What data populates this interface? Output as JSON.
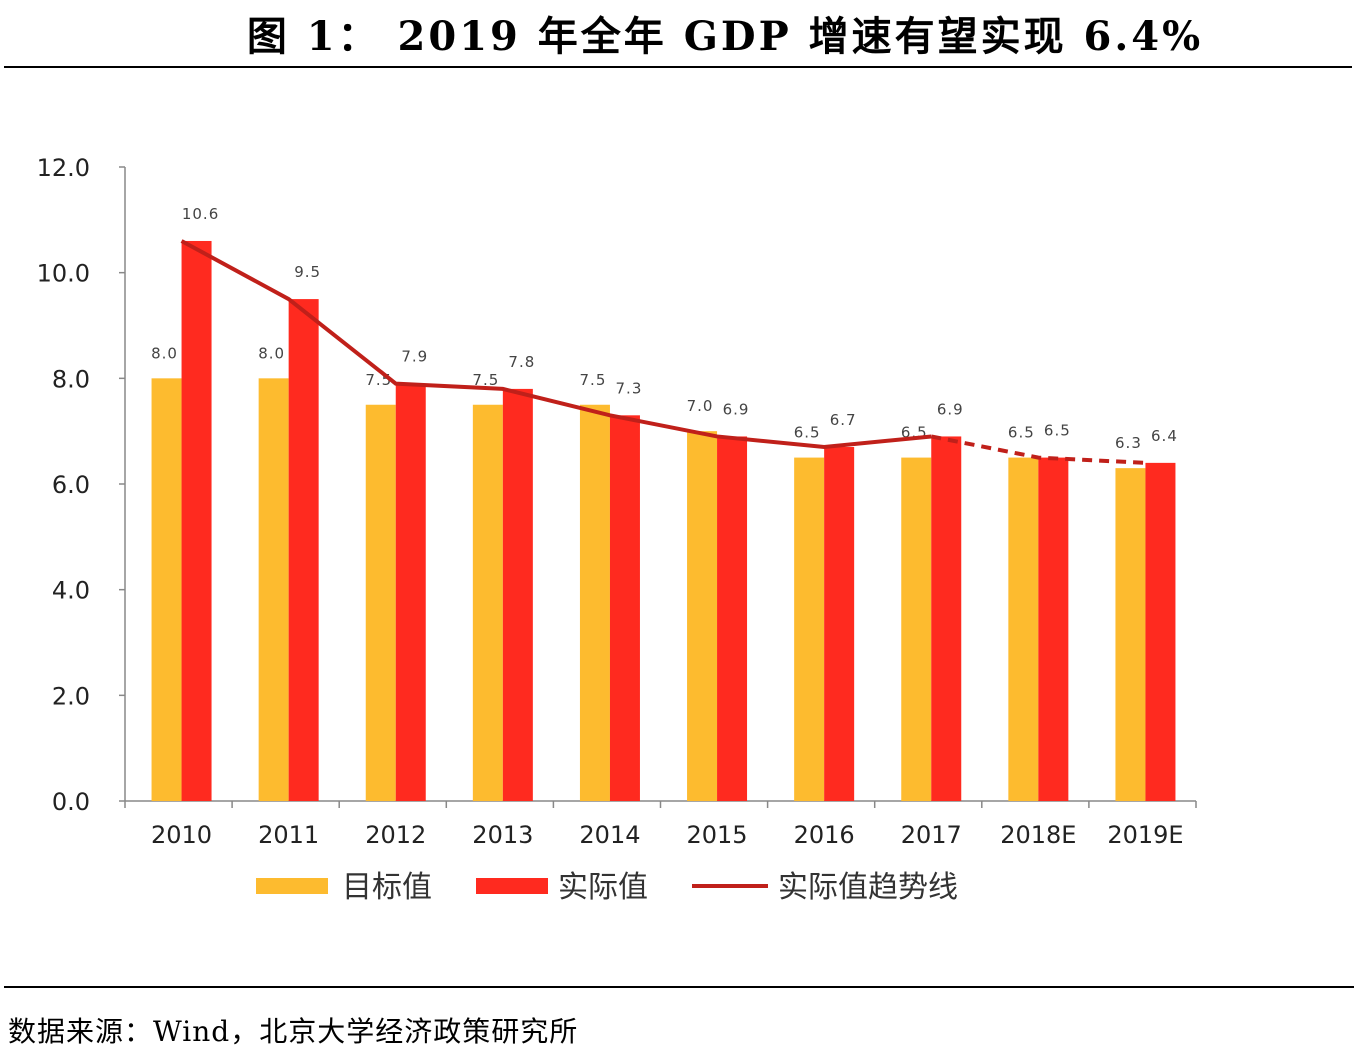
{
  "title": "图 1：  2019 年全年 GDP 增速有望实现 6.4%",
  "source": "数据来源：Wind，北京大学经济政策研究所",
  "chart_data": {
    "type": "bar",
    "title": "图 1：  2019 年全年 GDP 增速有望实现 6.4%",
    "xlabel": "",
    "ylabel": "",
    "ylim": [
      0,
      12
    ],
    "yticks": [
      "0.0",
      "2.0",
      "4.0",
      "6.0",
      "8.0",
      "10.0",
      "12.0"
    ],
    "grid": false,
    "legend_position": "bottom",
    "categories": [
      "2010",
      "2011",
      "2012",
      "2013",
      "2014",
      "2015",
      "2016",
      "2017",
      "2018E",
      "2019E"
    ],
    "series": [
      {
        "name": "目标值",
        "type": "bar",
        "color": "#FDBB2F",
        "values": [
          8.0,
          8.0,
          7.5,
          7.5,
          7.5,
          7.0,
          6.5,
          6.5,
          6.5,
          6.3
        ]
      },
      {
        "name": "实际值",
        "type": "bar",
        "color": "#FF2A1F",
        "values": [
          10.6,
          9.5,
          7.9,
          7.8,
          7.3,
          6.9,
          6.7,
          6.9,
          6.5,
          6.4
        ]
      },
      {
        "name": "实际值趋势线",
        "type": "line",
        "color": "#C0201A",
        "values": [
          10.6,
          9.5,
          7.9,
          7.8,
          7.3,
          6.9,
          6.7,
          6.9,
          6.5,
          6.4
        ],
        "dashed_from": "2017"
      }
    ]
  }
}
